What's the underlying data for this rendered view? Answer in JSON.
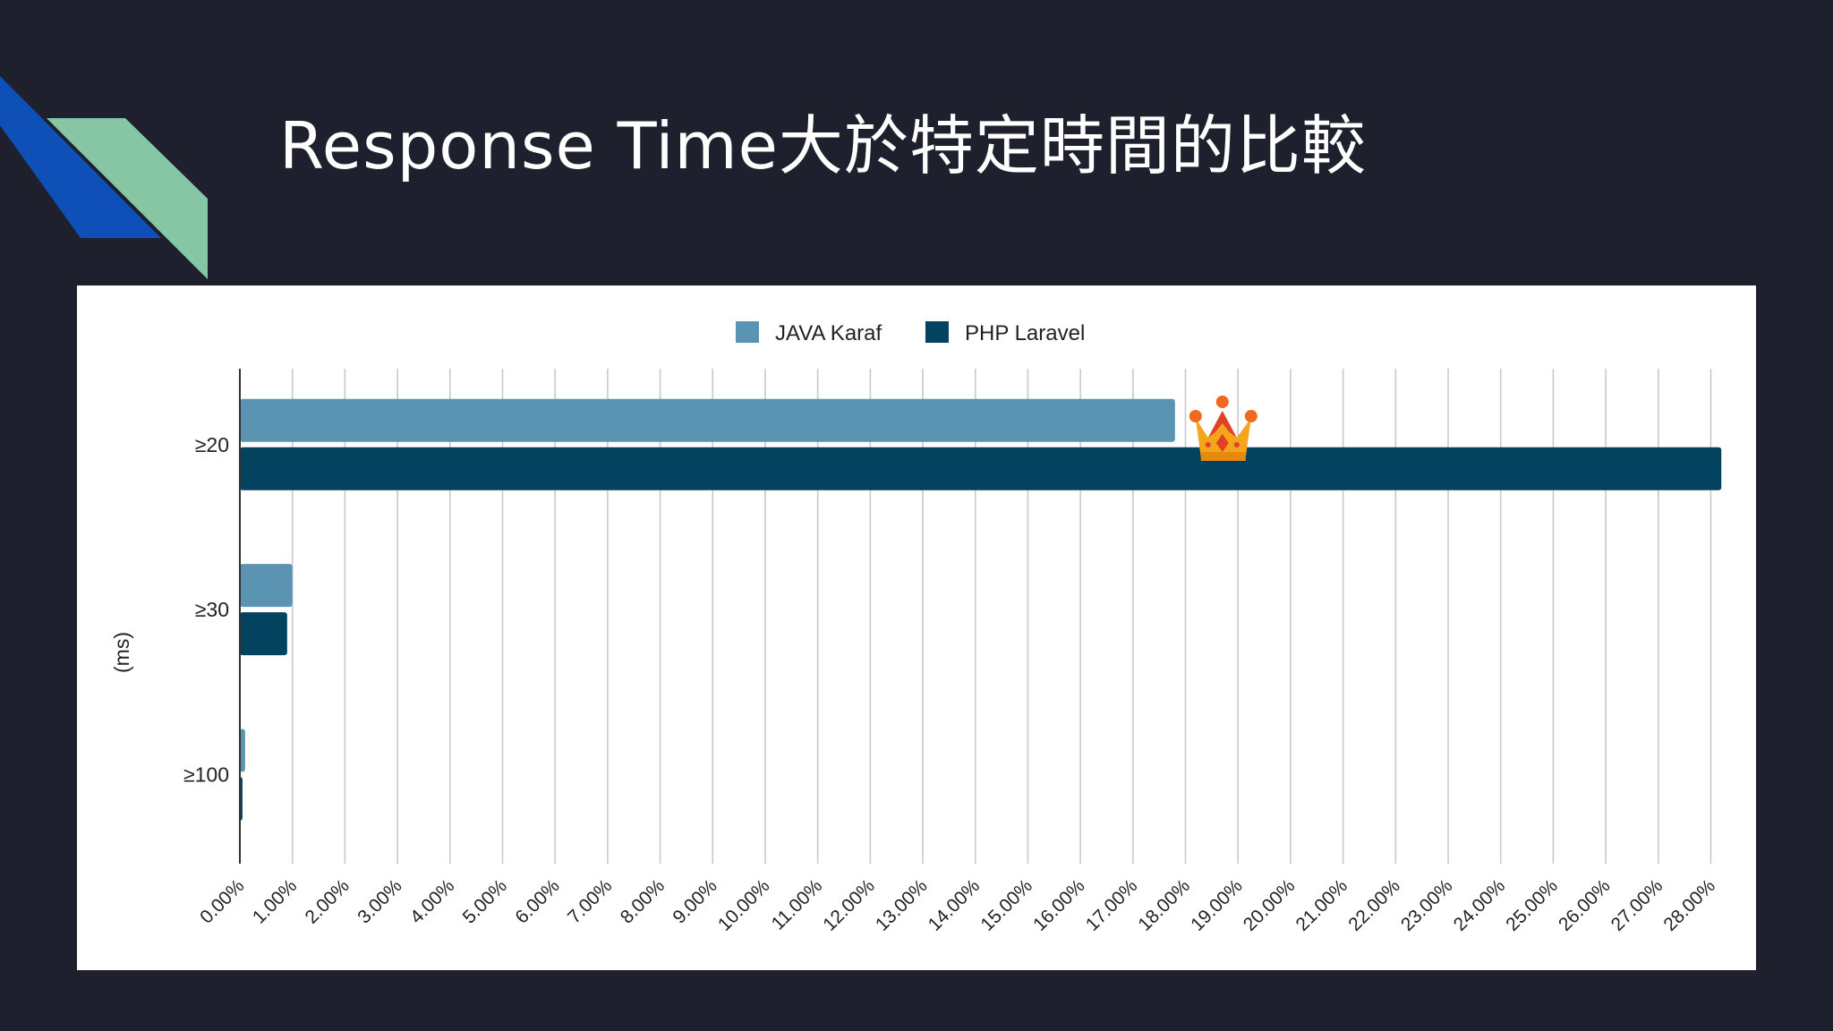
{
  "slide": {
    "title": "Response Time大於特定時間的比較"
  },
  "colors": {
    "background": "#1e202d",
    "deco_blue": "#0f4fb8",
    "deco_green": "#86c6a4",
    "series_1": "#5b93b3",
    "series_2": "#03435f",
    "crown_gold": "#f5a51c",
    "crown_red": "#e04127"
  },
  "icons": {
    "crown": "crown-icon"
  },
  "chart_data": {
    "type": "bar",
    "orientation": "horizontal",
    "categories": [
      "≥20",
      "≥30",
      "≥100"
    ],
    "series": [
      {
        "name": "JAVA Karaf",
        "values": [
          17.8,
          1.0,
          0.1
        ]
      },
      {
        "name": "PHP Laravel",
        "values": [
          28.2,
          0.9,
          0.05
        ]
      }
    ],
    "ylabel": "(ms)",
    "xlim": [
      0,
      28
    ],
    "x_ticks": [
      "0.00%",
      "1.00%",
      "2.00%",
      "3.00%",
      "4.00%",
      "5.00%",
      "6.00%",
      "7.00%",
      "8.00%",
      "9.00%",
      "10.00%",
      "11.00%",
      "12.00%",
      "13.00%",
      "14.00%",
      "15.00%",
      "16.00%",
      "17.00%",
      "18.00%",
      "19.00%",
      "20.00%",
      "21.00%",
      "22.00%",
      "23.00%",
      "24.00%",
      "25.00%",
      "26.00%",
      "27.00%",
      "28.00%"
    ],
    "grid": true,
    "legend_position": "top-center"
  }
}
